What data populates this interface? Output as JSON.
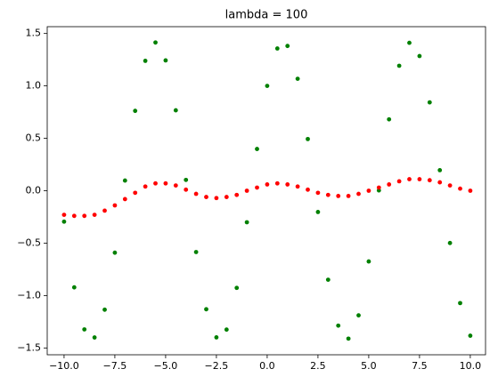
{
  "chart_data": {
    "type": "scatter",
    "title": "lambda = 100",
    "x": [
      -10,
      -9.5,
      -9,
      -8.5,
      -8,
      -7.5,
      -7,
      -6.5,
      -6,
      -5.5,
      -5,
      -4.5,
      -4,
      -3.5,
      -3,
      -2.5,
      -2,
      -1.5,
      -1,
      -0.5,
      0,
      0.5,
      1,
      1.5,
      2,
      2.5,
      3,
      3.5,
      4,
      4.5,
      5,
      5.5,
      6,
      6.5,
      7,
      7.5,
      8,
      8.5,
      9,
      9.5,
      10
    ],
    "series": [
      {
        "color": "#008000",
        "values": [
          -0.295,
          -0.922,
          -1.323,
          -1.4,
          -1.135,
          -0.591,
          0.097,
          0.762,
          1.239,
          1.414,
          1.243,
          0.767,
          0.103,
          -0.585,
          -1.131,
          -1.399,
          -1.325,
          -0.927,
          -0.301,
          0.398,
          1,
          1.357,
          1.381,
          1.068,
          0.493,
          -0.203,
          -0.849,
          -1.287,
          -1.411,
          -1.189,
          -0.675,
          0.003,
          0.681,
          1.192,
          1.411,
          1.285,
          0.843,
          0.196,
          -0.499,
          -1.072,
          -1.383
        ]
      },
      {
        "color": "#ff0000",
        "values": [
          -0.23,
          -0.24,
          -0.24,
          -0.23,
          -0.19,
          -0.14,
          -0.08,
          -0.02,
          0.04,
          0.07,
          0.07,
          0.05,
          0.01,
          -0.03,
          -0.06,
          -0.07,
          -0.06,
          -0.04,
          0,
          0.03,
          0.06,
          0.07,
          0.06,
          0.04,
          0.01,
          -0.02,
          -0.04,
          -0.05,
          -0.05,
          -0.03,
          0,
          0.03,
          0.06,
          0.09,
          0.11,
          0.11,
          0.1,
          0.08,
          0.05,
          0.02,
          0
        ]
      }
    ],
    "xlim": [
      -10.83,
      10.75
    ],
    "ylim": [
      -1.565,
      1.565
    ],
    "xticks": [
      {
        "value": -10,
        "label": "−10.0"
      },
      {
        "value": -7.5,
        "label": "−7.5"
      },
      {
        "value": -5,
        "label": "−5.0"
      },
      {
        "value": -2.5,
        "label": "−2.5"
      },
      {
        "value": 0,
        "label": "0.0"
      },
      {
        "value": 2.5,
        "label": "2.5"
      },
      {
        "value": 5,
        "label": "5.0"
      },
      {
        "value": 7.5,
        "label": "7.5"
      },
      {
        "value": 10,
        "label": "10.0"
      }
    ],
    "yticks": [
      {
        "value": -1.5,
        "label": "−1.5"
      },
      {
        "value": -1,
        "label": "−1.0"
      },
      {
        "value": -0.5,
        "label": "−0.5"
      },
      {
        "value": 0,
        "label": "0.0"
      },
      {
        "value": 0.5,
        "label": "0.5"
      },
      {
        "value": 1,
        "label": "1.0"
      },
      {
        "value": 1.5,
        "label": "1.5"
      }
    ]
  }
}
